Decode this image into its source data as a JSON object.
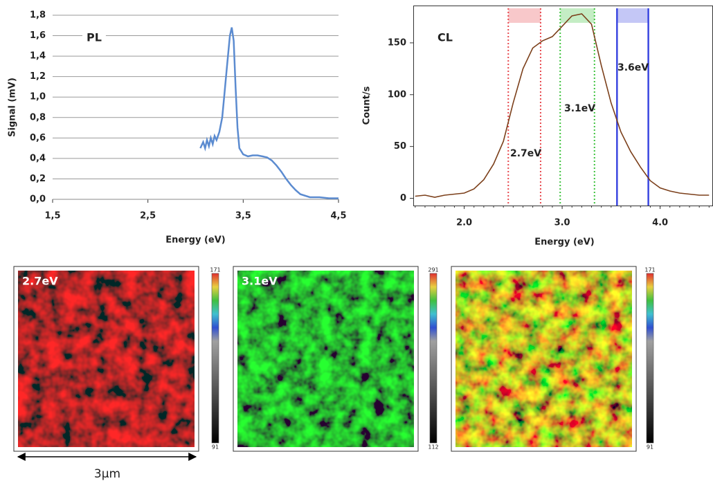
{
  "chart_data": [
    {
      "type": "line",
      "title": "PL",
      "x_label": "Energy (eV)",
      "y_label": "Signal (mV)",
      "color": "#5b8bd0",
      "grid": true,
      "xlim": [
        1.5,
        4.5
      ],
      "xticks": [
        {
          "value": 1.5,
          "label": "1,5"
        },
        {
          "value": 2.5,
          "label": "2,5"
        },
        {
          "value": 3.5,
          "label": "3,5"
        },
        {
          "value": 4.5,
          "label": "4,5"
        }
      ],
      "ylim": [
        0,
        1.8
      ],
      "yticks": [
        {
          "value": 0,
          "label": "0,0"
        },
        {
          "value": 0.2,
          "label": "0,2"
        },
        {
          "value": 0.4,
          "label": "0,4"
        },
        {
          "value": 0.6,
          "label": "0,6"
        },
        {
          "value": 0.8,
          "label": "0,8"
        },
        {
          "value": 1.0,
          "label": "1,0"
        },
        {
          "value": 1.2,
          "label": "1,2"
        },
        {
          "value": 1.4,
          "label": "1,4"
        },
        {
          "value": 1.6,
          "label": "1,6"
        },
        {
          "value": 1.8,
          "label": "1,8"
        }
      ],
      "x": [
        3.05,
        3.08,
        3.1,
        3.12,
        3.14,
        3.16,
        3.18,
        3.2,
        3.22,
        3.25,
        3.28,
        3.3,
        3.33,
        3.36,
        3.38,
        3.4,
        3.42,
        3.44,
        3.46,
        3.5,
        3.55,
        3.6,
        3.65,
        3.7,
        3.75,
        3.8,
        3.85,
        3.9,
        3.95,
        4.0,
        4.05,
        4.1,
        4.2,
        4.3,
        4.4,
        4.5
      ],
      "values": [
        0.5,
        0.56,
        0.5,
        0.58,
        0.52,
        0.6,
        0.54,
        0.62,
        0.58,
        0.66,
        0.8,
        1.0,
        1.3,
        1.6,
        1.68,
        1.55,
        1.1,
        0.7,
        0.5,
        0.44,
        0.42,
        0.43,
        0.43,
        0.42,
        0.41,
        0.38,
        0.33,
        0.27,
        0.2,
        0.14,
        0.09,
        0.05,
        0.02,
        0.02,
        0.01,
        0.01
      ]
    },
    {
      "type": "line",
      "title": "CL",
      "x_label": "Energy (eV)",
      "y_label": "Count/s",
      "color": "#7b3f1a",
      "grid": false,
      "xlim": [
        1.48,
        4.54
      ],
      "xticks": [
        {
          "value": 2,
          "label": "2.0"
        },
        {
          "value": 3,
          "label": "3.0"
        },
        {
          "value": 4,
          "label": "4.0"
        }
      ],
      "ylim": [
        -7,
        186
      ],
      "yticks": [
        0,
        50,
        100,
        150
      ],
      "x": [
        1.5,
        1.6,
        1.7,
        1.8,
        1.9,
        2.0,
        2.1,
        2.2,
        2.3,
        2.4,
        2.5,
        2.6,
        2.7,
        2.8,
        2.9,
        3.0,
        3.1,
        3.2,
        3.3,
        3.4,
        3.5,
        3.6,
        3.7,
        3.8,
        3.9,
        4.0,
        4.1,
        4.2,
        4.3,
        4.4,
        4.5
      ],
      "values": [
        2,
        3,
        1,
        3,
        4,
        5,
        9,
        18,
        33,
        55,
        92,
        125,
        145,
        152,
        156,
        166,
        176,
        178,
        168,
        128,
        92,
        64,
        45,
        30,
        17,
        10,
        7,
        5,
        4,
        3,
        3
      ],
      "bands": [
        {
          "label": "2.7eV",
          "color": "#e8494f",
          "style": "dotted",
          "range": [
            2.45,
            2.78
          ]
        },
        {
          "label": "3.1eV",
          "color": "#3cc23c",
          "style": "dotted",
          "range": [
            2.98,
            3.33
          ]
        },
        {
          "label": "3.6eV",
          "color": "#3a46e0",
          "style": "solid",
          "range": [
            3.56,
            3.88
          ]
        }
      ]
    }
  ],
  "maps": [
    {
      "label": "2.7eV",
      "colorbar": {
        "max": 171,
        "min": 91
      }
    },
    {
      "label": "3.1eV",
      "colorbar": {
        "max": 291,
        "min": 112
      }
    },
    {
      "colorbar": {
        "max": 171,
        "min": 91
      }
    }
  ],
  "scale_bar": "3μm"
}
